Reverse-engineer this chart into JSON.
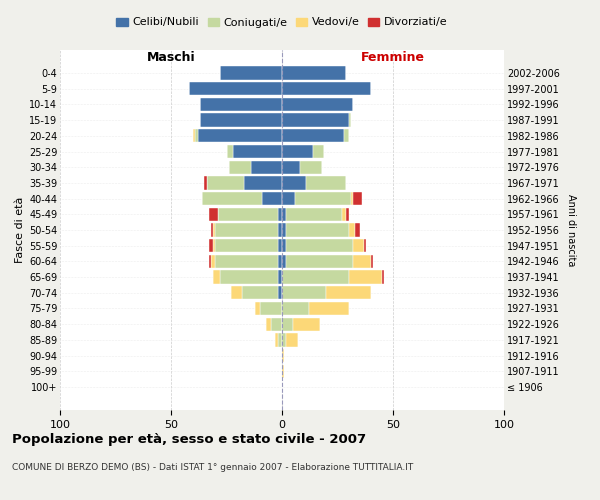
{
  "age_groups": [
    "100+",
    "95-99",
    "90-94",
    "85-89",
    "80-84",
    "75-79",
    "70-74",
    "65-69",
    "60-64",
    "55-59",
    "50-54",
    "45-49",
    "40-44",
    "35-39",
    "30-34",
    "25-29",
    "20-24",
    "15-19",
    "10-14",
    "5-9",
    "0-4"
  ],
  "anni_nascita": [
    "≤ 1906",
    "1907-1911",
    "1912-1916",
    "1917-1921",
    "1922-1926",
    "1927-1931",
    "1932-1936",
    "1937-1941",
    "1942-1946",
    "1947-1951",
    "1952-1956",
    "1957-1961",
    "1962-1966",
    "1967-1971",
    "1972-1976",
    "1977-1981",
    "1982-1986",
    "1987-1991",
    "1992-1996",
    "1997-2001",
    "2002-2006"
  ],
  "maschi": {
    "celibi": [
      0,
      0,
      0,
      0,
      0,
      0,
      2,
      2,
      2,
      2,
      2,
      2,
      9,
      17,
      14,
      22,
      38,
      37,
      37,
      42,
      28
    ],
    "coniugati": [
      0,
      0,
      0,
      2,
      5,
      10,
      16,
      26,
      28,
      28,
      28,
      27,
      27,
      17,
      10,
      3,
      1,
      0,
      0,
      0,
      0
    ],
    "vedovi": [
      0,
      0,
      0,
      1,
      2,
      2,
      5,
      3,
      2,
      1,
      1,
      0,
      0,
      0,
      0,
      0,
      1,
      0,
      0,
      0,
      0
    ],
    "divorziati": [
      0,
      0,
      0,
      0,
      0,
      0,
      0,
      0,
      1,
      2,
      1,
      4,
      0,
      1,
      0,
      0,
      0,
      0,
      0,
      0,
      0
    ]
  },
  "femmine": {
    "nubili": [
      0,
      0,
      0,
      0,
      0,
      0,
      0,
      0,
      2,
      2,
      2,
      2,
      6,
      11,
      8,
      14,
      28,
      30,
      32,
      40,
      29
    ],
    "coniugate": [
      0,
      0,
      0,
      2,
      5,
      12,
      20,
      30,
      30,
      30,
      28,
      25,
      25,
      18,
      10,
      5,
      2,
      1,
      0,
      0,
      0
    ],
    "vedove": [
      0,
      1,
      1,
      5,
      12,
      18,
      20,
      15,
      8,
      5,
      3,
      2,
      1,
      0,
      0,
      0,
      0,
      0,
      0,
      0,
      0
    ],
    "divorziate": [
      0,
      0,
      0,
      0,
      0,
      0,
      0,
      1,
      1,
      1,
      2,
      1,
      4,
      0,
      0,
      0,
      0,
      0,
      0,
      0,
      0
    ]
  },
  "colors": {
    "celibi": "#4472a8",
    "coniugati": "#c5d9a0",
    "vedovi": "#fcd878",
    "divorziati": "#d03030"
  },
  "xlim": 100,
  "title": "Popolazione per età, sesso e stato civile - 2007",
  "subtitle": "COMUNE DI BERZO DEMO (BS) - Dati ISTAT 1° gennaio 2007 - Elaborazione TUTTITALIA.IT",
  "xlabel_left": "Maschi",
  "xlabel_right": "Femmine",
  "ylabel": "Fasce di età",
  "ylabel_right": "Anni di nascita",
  "legend_labels": [
    "Celibi/Nubili",
    "Coniugati/e",
    "Vedovi/e",
    "Divorziati/e"
  ],
  "bg_color": "#f0f0eb",
  "plot_bg": "#ffffff"
}
